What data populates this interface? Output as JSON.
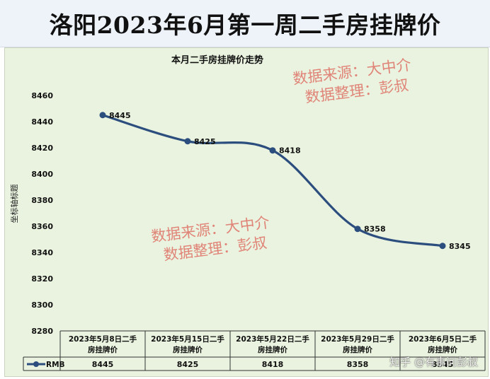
{
  "banner": {
    "title": "洛阳2023年6月第一周二手房挂牌价"
  },
  "watermarks": [
    {
      "source": "数据来源：大中介",
      "author": "数据整理：彭叔"
    },
    {
      "source": "数据来源：大中介",
      "author": "数据整理：彭叔"
    }
  ],
  "zhihu_watermark": "知乎 @有事问彭叔",
  "chart_data": {
    "type": "line",
    "title": "本月二手房挂牌价走势",
    "ylabel": "坐标轴标题",
    "xlabel": "",
    "ylim": [
      8280,
      8460
    ],
    "ytick_step": 20,
    "grid": false,
    "legend": "table-left",
    "categories": [
      "2023年5月8日二手房挂牌价",
      "2023年5月15日二手房挂牌价",
      "2023年5月22日二手房挂牌价",
      "2023年5月29日二手房挂牌价",
      "2023年6月5日二手房挂牌价"
    ],
    "series": [
      {
        "name": "RMB",
        "values": [
          8445,
          8425,
          8418,
          8358,
          8345
        ],
        "color": "#2c4e7e"
      }
    ]
  }
}
